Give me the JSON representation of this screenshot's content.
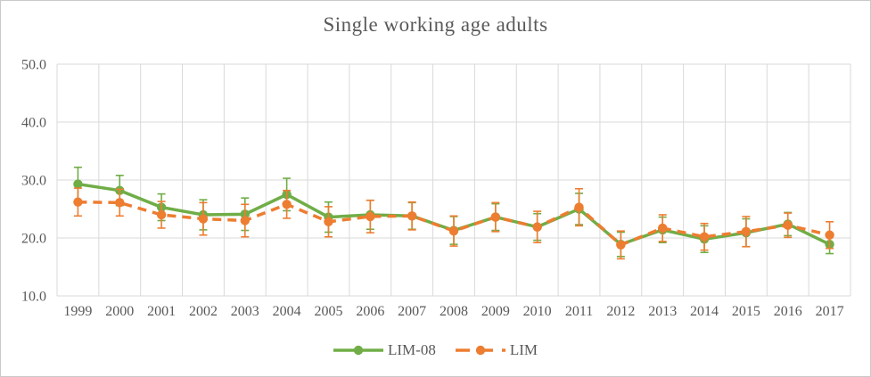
{
  "window": {
    "background_color": "#FFFFFF",
    "border_color": "#C9C9C9"
  },
  "chart_data": {
    "type": "line",
    "title": "Single working age adults",
    "title_color": "#595959",
    "axis_text_color": "#595959",
    "gridline_color": "#D9D9D9",
    "grid": true,
    "legend_position": "bottom",
    "xlabel": "",
    "ylabel": "",
    "ylim": [
      10,
      50
    ],
    "ytick_step": 10,
    "ytick_labels": [
      "10.0",
      "20.0",
      "30.0",
      "40.0",
      "50.0"
    ],
    "categories": [
      "1999",
      "2000",
      "2001",
      "2002",
      "2003",
      "2004",
      "2005",
      "2006",
      "2007",
      "2008",
      "2009",
      "2010",
      "2011",
      "2012",
      "2013",
      "2014",
      "2015",
      "2016",
      "2017"
    ],
    "series": [
      {
        "name": "LIM-08",
        "color": "#70AD47",
        "line_style": "solid",
        "marker": "circle",
        "values": [
          29.3,
          28.2,
          25.3,
          24.0,
          24.1,
          27.5,
          23.6,
          24.0,
          23.8,
          21.3,
          23.6,
          21.9,
          25.0,
          18.9,
          21.4,
          19.8,
          20.9,
          22.4,
          18.9
        ],
        "error_bars": [
          2.9,
          2.6,
          2.3,
          2.6,
          2.8,
          2.8,
          2.6,
          2.5,
          2.3,
          2.4,
          2.3,
          2.3,
          2.7,
          2.1,
          2.2,
          2.3,
          2.4,
          2.0,
          1.6
        ]
      },
      {
        "name": "LIM",
        "color": "#ED7D31",
        "line_style": "dashed",
        "marker": "circle",
        "values": [
          26.2,
          26.1,
          24.0,
          23.3,
          23.0,
          25.8,
          22.8,
          23.7,
          23.8,
          21.2,
          23.6,
          21.9,
          25.3,
          18.8,
          21.7,
          20.2,
          21.1,
          22.2,
          20.5
        ],
        "error_bars": [
          2.4,
          2.3,
          2.3,
          2.8,
          2.8,
          2.4,
          2.6,
          2.8,
          2.4,
          2.6,
          2.5,
          2.7,
          3.2,
          2.4,
          2.3,
          2.3,
          2.6,
          2.1,
          2.3
        ]
      }
    ]
  }
}
